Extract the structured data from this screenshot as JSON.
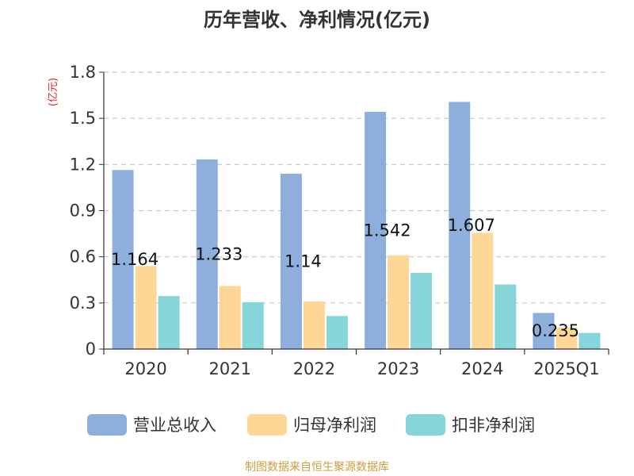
{
  "chart_data": {
    "type": "bar",
    "title": "历年营收、净利情况(亿元)",
    "unit_label": "(亿元)",
    "categories": [
      "2020",
      "2021",
      "2022",
      "2023",
      "2024",
      "2025Q1"
    ],
    "ylim": [
      0,
      1.8
    ],
    "yticks": [
      "0",
      "0.3",
      "0.6",
      "0.9",
      "1.2",
      "1.5",
      "1.8"
    ],
    "ytick_values": [
      0,
      0.3,
      0.6,
      0.9,
      1.2,
      1.5,
      1.8
    ],
    "grid": true,
    "legend_position": "bottom",
    "series": [
      {
        "name": "营业总收入",
        "color": "#8eaedb",
        "values": [
          1.164,
          1.233,
          1.14,
          1.542,
          1.607,
          0.235
        ]
      },
      {
        "name": "归母净利润",
        "color": "#fed797",
        "values": [
          0.54,
          0.41,
          0.31,
          0.61,
          0.755,
          0.14
        ]
      },
      {
        "name": "扣非净利润",
        "color": "#86d5d8",
        "values": [
          0.345,
          0.305,
          0.215,
          0.495,
          0.42,
          0.105
        ]
      }
    ],
    "data_labels": [
      "1.164",
      "1.233",
      "1.14",
      "1.542",
      "1.607",
      "0.235"
    ],
    "source": "制图数据来自恒生聚源数据库"
  }
}
